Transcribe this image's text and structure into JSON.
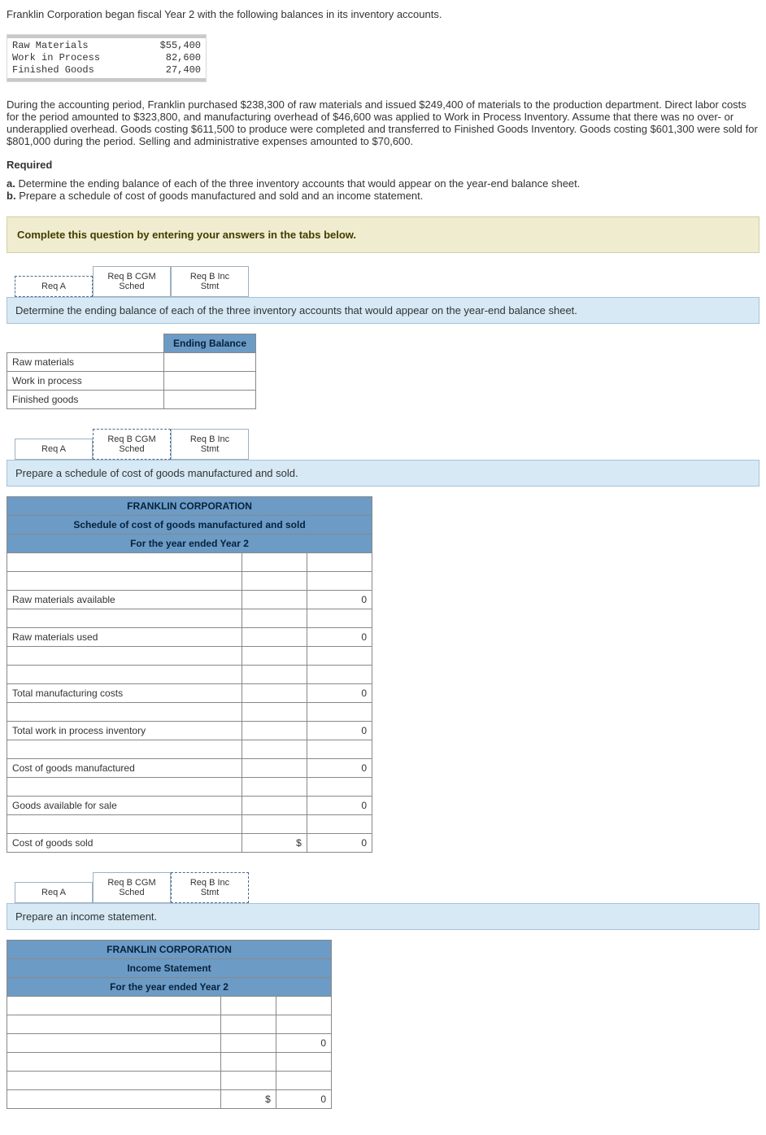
{
  "intro_line": "Franklin Corporation began fiscal Year 2 with the following balances in its inventory accounts.",
  "balances": {
    "rows": [
      {
        "label": "Raw Materials",
        "value": "$55,400"
      },
      {
        "label": "Work in Process",
        "value": "82,600"
      },
      {
        "label": "Finished Goods",
        "value": "27,400"
      }
    ]
  },
  "paragraph": "During the accounting period, Franklin purchased $238,300 of raw materials and issued $249,400 of materials to the production department. Direct labor costs for the period amounted to $323,800, and manufacturing overhead of $46,600 was applied to Work in Process Inventory. Assume that there was no over- or underapplied overhead. Goods costing $611,500 to produce were completed and transferred to Finished Goods Inventory. Goods costing $601,300 were sold for $801,000 during the period. Selling and administrative expenses amounted to $70,600.",
  "required_hd": "Required",
  "req_a": "a. Determine the ending balance of each of the three inventory accounts that would appear on the year-end balance sheet.",
  "req_b": "b. Prepare a schedule of cost of goods manufactured and sold and an income statement.",
  "banner": "Complete this question by entering your answers in the tabs below.",
  "tabs": {
    "a": "Req A",
    "b": "Req B CGM\nSched",
    "c": "Req B Inc\nStmt"
  },
  "instrA": "Determine the ending balance of each of the three inventory accounts that would appear on the year-end balance sheet.",
  "tableA": {
    "header": "Ending Balance",
    "rows": [
      "Raw materials",
      "Work in process",
      "Finished goods"
    ]
  },
  "instrB": "Prepare a schedule of cost of goods manufactured and sold.",
  "tableB": {
    "title": "FRANKLIN CORPORATION",
    "subtitle": "Schedule of cost of goods manufactured and sold",
    "period": "For the year ended Year 2",
    "rows": [
      {
        "label": "",
        "v2": "",
        "v3": ""
      },
      {
        "label": "",
        "v2": "",
        "v3": ""
      },
      {
        "label": "Raw materials available",
        "v2": "",
        "v3": "0"
      },
      {
        "label": "",
        "v2": "",
        "v3": ""
      },
      {
        "label": "Raw materials used",
        "v2": "",
        "v3": "0"
      },
      {
        "label": "",
        "v2": "",
        "v3": ""
      },
      {
        "label": "",
        "v2": "",
        "v3": ""
      },
      {
        "label": "Total manufacturing costs",
        "v2": "",
        "v3": "0"
      },
      {
        "label": "",
        "v2": "",
        "v3": ""
      },
      {
        "label": "Total work in process inventory",
        "v2": "",
        "v3": "0"
      },
      {
        "label": "",
        "v2": "",
        "v3": ""
      },
      {
        "label": "Cost of goods manufactured",
        "v2": "",
        "v3": "0"
      },
      {
        "label": "",
        "v2": "",
        "v3": ""
      },
      {
        "label": "Goods available for sale",
        "v2": "",
        "v3": "0"
      },
      {
        "label": "",
        "v2": "",
        "v3": ""
      },
      {
        "label": "Cost of goods sold",
        "v2": "$",
        "v3": "0"
      }
    ]
  },
  "instrC": "Prepare an income statement.",
  "tableC": {
    "title": "FRANKLIN CORPORATION",
    "subtitle": "Income Statement",
    "period": "For the year ended Year 2",
    "rows": [
      {
        "label": "",
        "v2": "",
        "v3": ""
      },
      {
        "label": "",
        "v2": "",
        "v3": ""
      },
      {
        "label": "",
        "v2": "",
        "v3": "0"
      },
      {
        "label": "",
        "v2": "",
        "v3": ""
      },
      {
        "label": "",
        "v2": "",
        "v3": ""
      },
      {
        "label": "",
        "v2": "$",
        "v3": "0"
      }
    ]
  }
}
